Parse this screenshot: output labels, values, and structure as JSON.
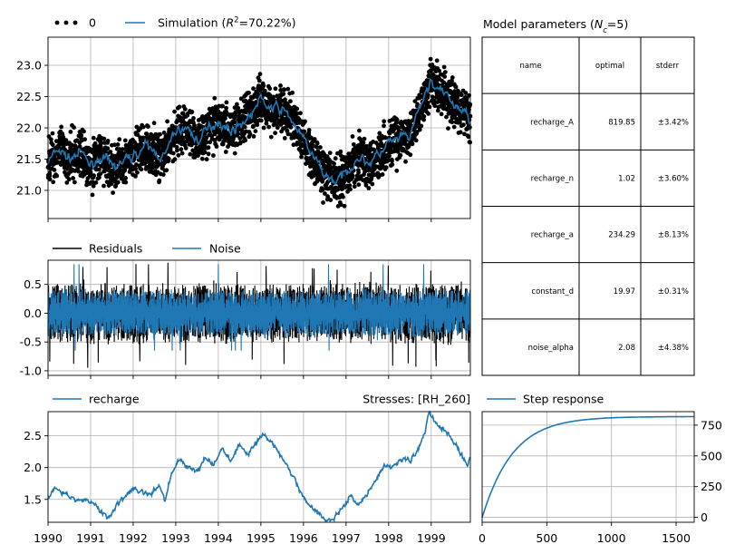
{
  "colors": {
    "observed": "#000000",
    "simulation": "#1f77b4",
    "residuals": "#000000",
    "noise": "#1f77b4",
    "grid": "#b0b0b0"
  },
  "chart_data": [
    {
      "id": "fit",
      "type": "line",
      "legend": [
        {
          "label": "0",
          "style": "dots",
          "color": "#000000"
        },
        {
          "label_prefix": "Simulation (",
          "label_italic": "R",
          "label_sup": "2",
          "label_suffix": "=70.22%)",
          "style": "line",
          "color": "#1f77b4"
        }
      ],
      "yticks": [
        21.0,
        21.5,
        22.0,
        22.5,
        23.0
      ],
      "ylim": [
        20.55,
        23.45
      ],
      "xlim": [
        1990.0,
        1999.92
      ],
      "grid": true,
      "series": [
        {
          "name": "Simulation",
          "x": [
            1990.0,
            1990.25,
            1990.5,
            1990.75,
            1991.0,
            1991.25,
            1991.5,
            1991.75,
            1992.0,
            1992.25,
            1992.5,
            1992.75,
            1993.0,
            1993.25,
            1993.5,
            1993.75,
            1994.0,
            1994.25,
            1994.5,
            1994.75,
            1995.0,
            1995.25,
            1995.5,
            1995.75,
            1996.0,
            1996.25,
            1996.5,
            1996.75,
            1997.0,
            1997.25,
            1997.5,
            1997.75,
            1998.0,
            1998.25,
            1998.5,
            1998.75,
            1999.0,
            1999.25,
            1999.5,
            1999.75,
            1999.92
          ],
          "y": [
            21.45,
            21.65,
            21.5,
            21.6,
            21.4,
            21.55,
            21.35,
            21.45,
            21.55,
            21.7,
            21.6,
            21.55,
            21.95,
            22.0,
            21.8,
            21.95,
            22.15,
            21.95,
            22.05,
            22.2,
            22.45,
            22.3,
            22.3,
            22.1,
            21.8,
            21.5,
            21.25,
            21.15,
            21.25,
            21.55,
            21.45,
            21.55,
            21.75,
            21.8,
            21.85,
            22.35,
            22.75,
            22.55,
            22.4,
            22.25,
            22.15
          ]
        }
      ]
    },
    {
      "id": "residuals",
      "type": "line",
      "legend": [
        {
          "label": "Residuals",
          "color": "#000000"
        },
        {
          "label": "Noise",
          "color": "#1f77b4"
        }
      ],
      "yticks": [
        -1.0,
        -0.5,
        0.0,
        0.5
      ],
      "ylim": [
        -1.08,
        0.92
      ],
      "xlim": [
        1990.0,
        1999.92
      ],
      "grid": true,
      "residual_band": [
        -0.5,
        0.5
      ],
      "noise_band": [
        -0.4,
        0.4
      ],
      "residual_extremes": {
        "min": -0.97,
        "max": 0.88
      }
    },
    {
      "id": "stress",
      "type": "line",
      "legend": [
        {
          "label": "recharge",
          "color": "#1f77b4"
        }
      ],
      "title_right": "Stresses: [RH_260]",
      "yticks": [
        1.5,
        2.0,
        2.5
      ],
      "xticks": [
        "1990",
        "1991",
        "1992",
        "1993",
        "1994",
        "1995",
        "1996",
        "1997",
        "1998",
        "1999"
      ],
      "ylim": [
        1.14,
        2.88
      ],
      "xlim": [
        1990.0,
        1999.92
      ],
      "grid": true,
      "series": [
        {
          "name": "recharge",
          "x": [
            1990.0,
            1990.15,
            1990.3,
            1990.5,
            1990.7,
            1990.9,
            1991.1,
            1991.3,
            1991.45,
            1991.6,
            1991.8,
            1992.0,
            1992.2,
            1992.4,
            1992.6,
            1992.75,
            1992.9,
            1993.1,
            1993.3,
            1993.5,
            1993.7,
            1993.9,
            1994.1,
            1994.3,
            1994.5,
            1994.7,
            1994.9,
            1995.05,
            1995.2,
            1995.4,
            1995.6,
            1995.8,
            1996.0,
            1996.2,
            1996.4,
            1996.55,
            1996.7,
            1996.9,
            1997.1,
            1997.3,
            1997.5,
            1997.7,
            1997.9,
            1998.1,
            1998.3,
            1998.5,
            1998.7,
            1998.85,
            1998.95,
            1999.1,
            1999.3,
            1999.5,
            1999.7,
            1999.85,
            1999.92
          ],
          "y": [
            1.5,
            1.7,
            1.62,
            1.55,
            1.48,
            1.5,
            1.42,
            1.3,
            1.22,
            1.4,
            1.55,
            1.68,
            1.62,
            1.58,
            1.7,
            1.5,
            1.9,
            2.15,
            2.0,
            1.95,
            2.15,
            2.05,
            2.3,
            2.1,
            2.35,
            2.2,
            2.4,
            2.5,
            2.45,
            2.25,
            2.05,
            1.8,
            1.55,
            1.35,
            1.25,
            1.18,
            1.2,
            1.35,
            1.55,
            1.45,
            1.6,
            1.8,
            2.05,
            2.0,
            2.15,
            2.1,
            2.3,
            2.55,
            2.85,
            2.7,
            2.6,
            2.45,
            2.2,
            2.05,
            2.2
          ]
        }
      ]
    },
    {
      "id": "step",
      "type": "line",
      "legend": [
        {
          "label": "Step response",
          "color": "#1f77b4"
        }
      ],
      "xticks": [
        0,
        500,
        1000,
        1500
      ],
      "yticks": [
        0,
        250,
        500,
        750
      ],
      "xlim": [
        0,
        1640
      ],
      "ylim": [
        -40,
        860
      ],
      "grid": true,
      "series": [
        {
          "name": "Step response",
          "A": 819.85,
          "a": 234.29,
          "n": 1.02
        }
      ]
    }
  ],
  "params_table": {
    "title_prefix": "Model parameters (",
    "title_italic": "N",
    "title_sub": "c",
    "title_suffix": "=5)",
    "headers": [
      "name",
      "optimal",
      "stderr"
    ],
    "rows": [
      [
        "recharge_A",
        "819.85",
        "±3.42%"
      ],
      [
        "recharge_n",
        "1.02",
        "±3.60%"
      ],
      [
        "recharge_a",
        "234.29",
        "±8.13%"
      ],
      [
        "constant_d",
        "19.97",
        "±0.31%"
      ],
      [
        "noise_alpha",
        "2.08",
        "±4.38%"
      ]
    ]
  }
}
